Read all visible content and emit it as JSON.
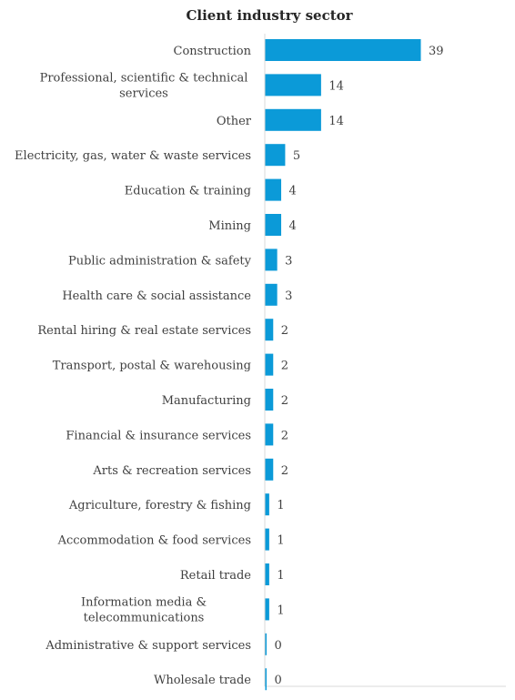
{
  "chart_data": {
    "type": "bar",
    "orientation": "horizontal",
    "title": "Client industry sector",
    "xlabel": "",
    "ylabel": "",
    "grid": false,
    "legend": "none",
    "color": "#0b9ad8",
    "xlim": [
      0,
      42
    ],
    "categories": [
      "Construction",
      "Professional, scientific & technical services",
      "Other",
      "Electricity, gas, water & waste services",
      "Education & training",
      "Mining",
      "Public administration & safety",
      "Health care & social assistance",
      "Rental hiring & real estate services",
      "Transport, postal & warehousing",
      "Manufacturing",
      "Financial & insurance services",
      "Arts & recreation services",
      "Agriculture, forestry & fishing",
      "Accommodation & food services",
      "Retail trade",
      "Information media & telecommunications",
      "Administrative & support services",
      "Wholesale trade"
    ],
    "values": [
      39,
      14,
      14,
      5,
      4,
      4,
      3,
      3,
      2,
      2,
      2,
      2,
      2,
      1,
      1,
      1,
      1,
      0,
      0
    ],
    "data_labels": [
      "39",
      "14",
      "14",
      "5",
      "4",
      "4",
      "3",
      "3",
      "2",
      "2",
      "2",
      "2",
      "2",
      "1",
      "1",
      "1",
      "1",
      "0",
      "0"
    ]
  }
}
